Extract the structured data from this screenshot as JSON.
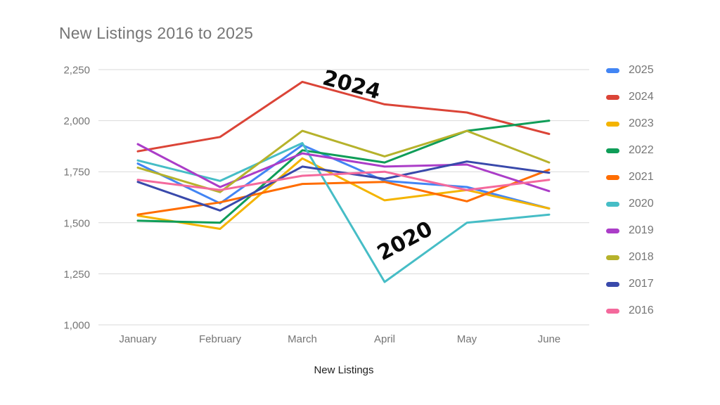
{
  "title": "New Listings 2016 to 2025",
  "axis": {
    "x_title": "New Listings",
    "y_ticks": [
      {
        "label": "2,250",
        "value": 2250
      },
      {
        "label": "2,000",
        "value": 2000
      },
      {
        "label": "1,750",
        "value": 1750
      },
      {
        "label": "1,500",
        "value": 1500
      },
      {
        "label": "1,250",
        "value": 1250
      },
      {
        "label": "1,000",
        "value": 1000
      }
    ],
    "x_labels": [
      "January",
      "February",
      "March",
      "April",
      "May",
      "June"
    ]
  },
  "annotations": [
    {
      "text": "2024",
      "target_series": "2024"
    },
    {
      "text": "2020",
      "target_series": "2020"
    }
  ],
  "chart_data": {
    "type": "line",
    "title": "New Listings 2016 to 2025",
    "xlabel": "New Listings",
    "ylabel": "",
    "ylim": [
      1000,
      2250
    ],
    "ytick_step": 250,
    "grid": true,
    "legend_position": "right",
    "categories": [
      "January",
      "February",
      "March",
      "April",
      "May",
      "June"
    ],
    "series": [
      {
        "name": "2025",
        "color": "#4285F4",
        "values": [
          1790,
          1595,
          1880,
          1705,
          1675,
          1570
        ]
      },
      {
        "name": "2024",
        "color": "#DB4437",
        "values": [
          1850,
          1920,
          2190,
          2080,
          2040,
          1935
        ]
      },
      {
        "name": "2023",
        "color": "#F4B400",
        "values": [
          1535,
          1470,
          1815,
          1610,
          1660,
          1570
        ]
      },
      {
        "name": "2022",
        "color": "#0F9D58",
        "values": [
          1510,
          1500,
          1855,
          1795,
          1950,
          2000
        ]
      },
      {
        "name": "2021",
        "color": "#FF6D01",
        "values": [
          1540,
          1600,
          1690,
          1700,
          1605,
          1760
        ]
      },
      {
        "name": "2020",
        "color": "#46BDC6",
        "values": [
          1805,
          1705,
          1890,
          1210,
          1500,
          1540
        ]
      },
      {
        "name": "2019",
        "color": "#AB3DC8",
        "values": [
          1885,
          1675,
          1840,
          1775,
          1785,
          1655
        ]
      },
      {
        "name": "2018",
        "color": "#B6B22B",
        "values": [
          1770,
          1650,
          1950,
          1825,
          1950,
          1795
        ]
      },
      {
        "name": "2017",
        "color": "#3949AB",
        "values": [
          1700,
          1560,
          1775,
          1715,
          1800,
          1745
        ]
      },
      {
        "name": "2016",
        "color": "#F4699C",
        "values": [
          1710,
          1660,
          1730,
          1750,
          1660,
          1710
        ]
      }
    ]
  }
}
